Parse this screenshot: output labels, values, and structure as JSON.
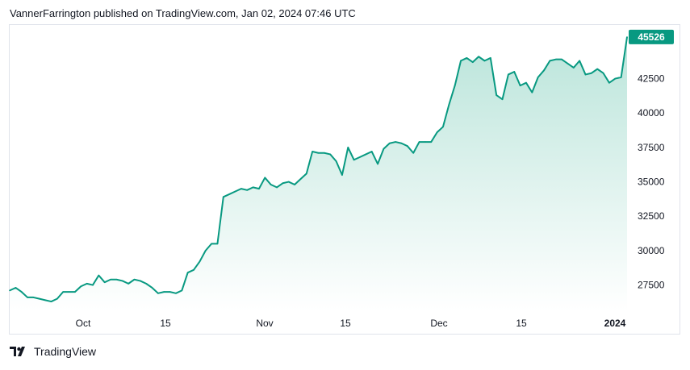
{
  "header": {
    "attribution": "VannerFarrington published on TradingView.com, Jan 02, 2024 07:46 UTC"
  },
  "footer": {
    "brand": "TradingView",
    "logo_icon": "tradingview-logo-icon"
  },
  "colors": {
    "line": "#089981",
    "fill_top": "#b6e3d8",
    "fill_bottom": "#ffffff",
    "price_tag": "#089981",
    "border": "#e0e3eb"
  },
  "chart_data": {
    "type": "area",
    "title": "",
    "xlabel": "",
    "ylabel": "",
    "x_ticks": [
      {
        "label": "Oct",
        "bold": false
      },
      {
        "label": "15",
        "bold": false
      },
      {
        "label": "Nov",
        "bold": false
      },
      {
        "label": "15",
        "bold": false
      },
      {
        "label": "Dec",
        "bold": false
      },
      {
        "label": "15",
        "bold": false
      },
      {
        "label": "2024",
        "bold": true
      }
    ],
    "y_ticks": [
      27500,
      30000,
      32500,
      35000,
      37500,
      40000,
      42500
    ],
    "ylim": [
      25600,
      46400
    ],
    "last_price": "45526",
    "series": [
      {
        "x": [
          "2023-09-20",
          "2023-09-21",
          "2023-09-22",
          "2023-09-23",
          "2023-09-24",
          "2023-09-25",
          "2023-09-26",
          "2023-09-27",
          "2023-09-28",
          "2023-09-29",
          "2023-09-30",
          "2023-10-01",
          "2023-10-02",
          "2023-10-03",
          "2023-10-04",
          "2023-10-05",
          "2023-10-06",
          "2023-10-07",
          "2023-10-08",
          "2023-10-09",
          "2023-10-10",
          "2023-10-11",
          "2023-10-12",
          "2023-10-13",
          "2023-10-14",
          "2023-10-15",
          "2023-10-16",
          "2023-10-17",
          "2023-10-18",
          "2023-10-19",
          "2023-10-20",
          "2023-10-21",
          "2023-10-22",
          "2023-10-23",
          "2023-10-24",
          "2023-10-25",
          "2023-10-26",
          "2023-10-27",
          "2023-10-28",
          "2023-10-29",
          "2023-10-30",
          "2023-10-31",
          "2023-11-01",
          "2023-11-02",
          "2023-11-03",
          "2023-11-04",
          "2023-11-05",
          "2023-11-06",
          "2023-11-07",
          "2023-11-08",
          "2023-11-09",
          "2023-11-10",
          "2023-11-11",
          "2023-11-12",
          "2023-11-13",
          "2023-11-14",
          "2023-11-15",
          "2023-11-16",
          "2023-11-17",
          "2023-11-18",
          "2023-11-19",
          "2023-11-20",
          "2023-11-21",
          "2023-11-22",
          "2023-11-23",
          "2023-11-24",
          "2023-11-25",
          "2023-11-26",
          "2023-11-27",
          "2023-11-28",
          "2023-11-29",
          "2023-11-30",
          "2023-12-01",
          "2023-12-02",
          "2023-12-03",
          "2023-12-04",
          "2023-12-05",
          "2023-12-06",
          "2023-12-07",
          "2023-12-08",
          "2023-12-09",
          "2023-12-10",
          "2023-12-11",
          "2023-12-12",
          "2023-12-13",
          "2023-12-14",
          "2023-12-15",
          "2023-12-16",
          "2023-12-17",
          "2023-12-18",
          "2023-12-19",
          "2023-12-20",
          "2023-12-21",
          "2023-12-22",
          "2023-12-23",
          "2023-12-24",
          "2023-12-25",
          "2023-12-26",
          "2023-12-27",
          "2023-12-28",
          "2023-12-29",
          "2023-12-30",
          "2023-12-31",
          "2024-01-01",
          "2024-01-02"
        ],
        "values": [
          27100,
          27300,
          27000,
          26600,
          26600,
          26500,
          26400,
          26300,
          26500,
          27000,
          27000,
          27000,
          27400,
          27600,
          27500,
          28200,
          27700,
          27900,
          27900,
          27800,
          27600,
          27900,
          27800,
          27600,
          27300,
          26900,
          27000,
          27000,
          26900,
          27100,
          28400,
          28600,
          29200,
          30000,
          30500,
          30500,
          33900,
          34100,
          34300,
          34500,
          34400,
          34600,
          34500,
          35300,
          34800,
          34600,
          34900,
          35000,
          34800,
          35200,
          35600,
          37200,
          37100,
          37100,
          37000,
          36500,
          35500,
          37500,
          36600,
          36800,
          37000,
          37200,
          36300,
          37400,
          37800,
          37900,
          37800,
          37600,
          37100,
          37900,
          37900,
          37900,
          38600,
          39000,
          40600,
          42000,
          43800,
          44000,
          43700,
          44100,
          43800,
          44000,
          41300,
          41000,
          42800,
          43000,
          42000,
          42200,
          41500,
          42600,
          43100,
          43800,
          43900,
          43900,
          43600,
          43300,
          43800,
          42800,
          42900,
          43200,
          42900,
          42200,
          42500,
          42600,
          45526
        ]
      }
    ]
  }
}
